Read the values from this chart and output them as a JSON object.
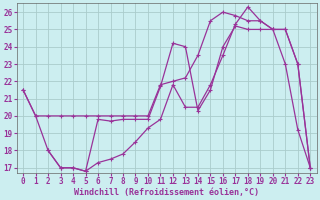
{
  "xlabel": "Windchill (Refroidissement éolien,°C)",
  "bg_color": "#cceef0",
  "grid_color": "#aacccc",
  "line_color": "#993399",
  "xlim": [
    -0.5,
    23.5
  ],
  "ylim": [
    16.7,
    26.5
  ],
  "xticks": [
    0,
    1,
    2,
    3,
    4,
    5,
    6,
    7,
    8,
    9,
    10,
    11,
    12,
    13,
    14,
    15,
    16,
    17,
    18,
    19,
    20,
    21,
    22,
    23
  ],
  "yticks": [
    17,
    18,
    19,
    20,
    21,
    22,
    23,
    24,
    25,
    26
  ],
  "line1_x": [
    0,
    1,
    2,
    3,
    4,
    5,
    6,
    7,
    8,
    9,
    10,
    11,
    12,
    13,
    14,
    15,
    16,
    17,
    18,
    19,
    20,
    21,
    22,
    23
  ],
  "line1_y": [
    21.5,
    20.0,
    20.0,
    20.0,
    20.0,
    20.0,
    20.0,
    20.0,
    20.0,
    20.0,
    20.0,
    21.8,
    22.0,
    22.2,
    23.5,
    25.5,
    26.0,
    25.8,
    25.5,
    25.5,
    25.0,
    23.0,
    19.2,
    17.0
  ],
  "line2_x": [
    0,
    1,
    2,
    3,
    4,
    5,
    6,
    7,
    8,
    9,
    10,
    11,
    12,
    13,
    14,
    15,
    16,
    17,
    18,
    19,
    20,
    21,
    22,
    23
  ],
  "line2_y": [
    21.5,
    20.0,
    18.0,
    17.0,
    17.0,
    16.8,
    17.3,
    17.5,
    17.8,
    18.5,
    19.3,
    19.8,
    21.8,
    20.5,
    20.5,
    21.8,
    23.5,
    25.3,
    26.3,
    25.5,
    25.0,
    25.0,
    23.0,
    17.0
  ],
  "line3_x": [
    2,
    3,
    4,
    5,
    6,
    7,
    8,
    9,
    10,
    11,
    12,
    13,
    14,
    15,
    16,
    17,
    18,
    19,
    20,
    21,
    22,
    23
  ],
  "line3_y": [
    18.0,
    17.0,
    17.0,
    16.8,
    19.8,
    19.7,
    19.8,
    19.8,
    19.8,
    21.7,
    24.2,
    24.0,
    20.3,
    21.5,
    24.0,
    25.2,
    25.0,
    25.0,
    25.0,
    25.0,
    23.0,
    17.0
  ],
  "marker_size": 2.5,
  "line_width": 0.9,
  "tick_fontsize": 5.5,
  "xlabel_fontsize": 6.0
}
